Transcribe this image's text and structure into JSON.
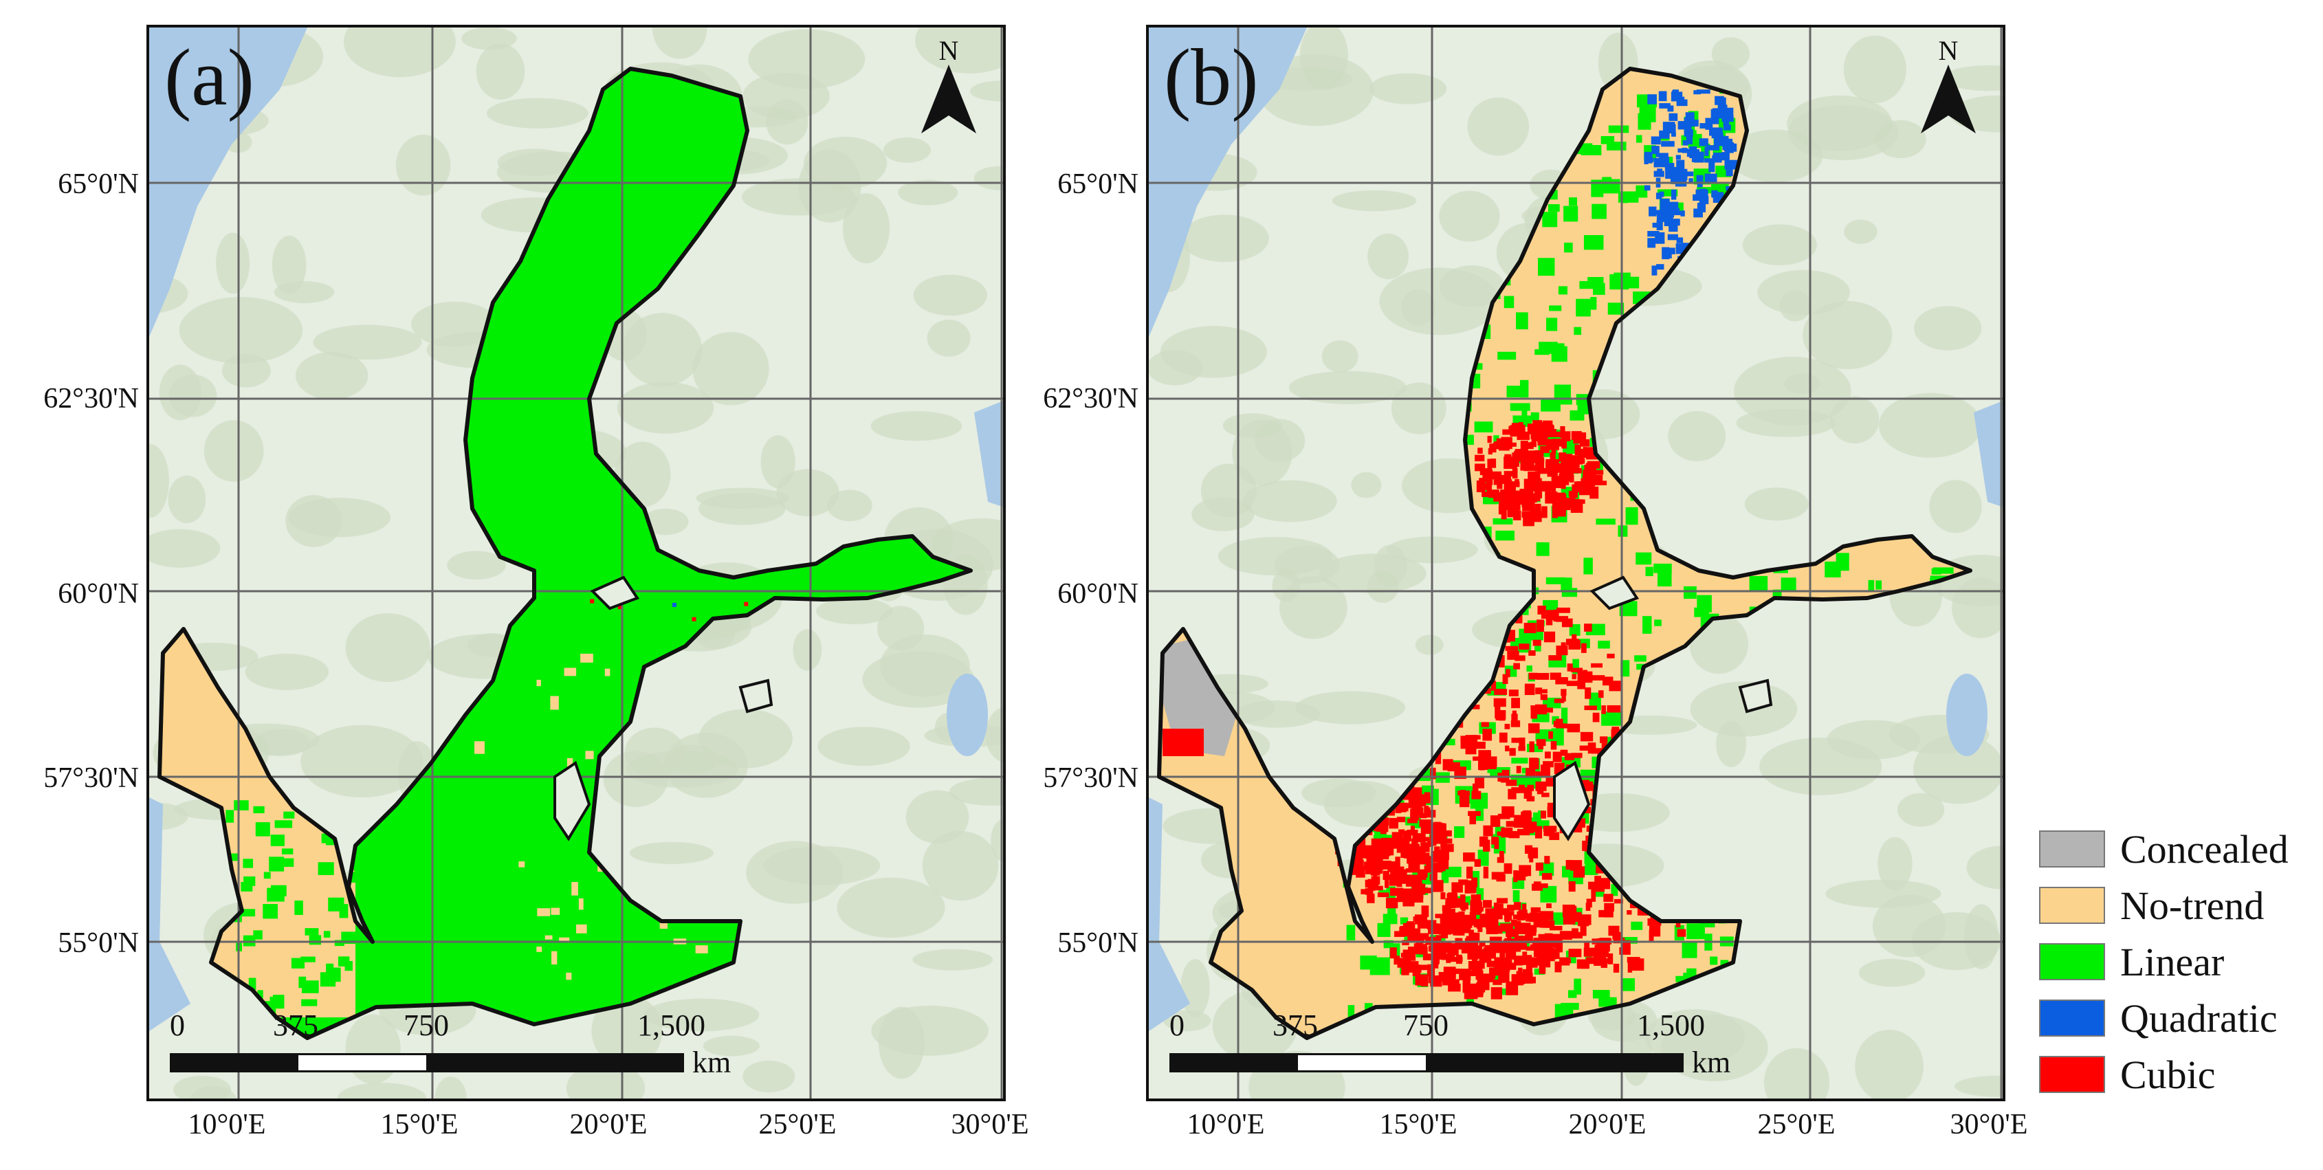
{
  "panels": [
    {
      "id": "a",
      "label": "(a)",
      "north_symbol": "N",
      "dominant_class": "Linear",
      "classes_present": [
        "No-trend",
        "Linear",
        "Quadratic",
        "Cubic"
      ]
    },
    {
      "id": "b",
      "label": "(b)",
      "north_symbol": "N",
      "dominant_class": "No-trend",
      "classes_present": [
        "Concealed",
        "No-trend",
        "Linear",
        "Quadratic",
        "Cubic"
      ]
    }
  ],
  "axes": {
    "latitude_labels": [
      "65°0'N",
      "62°30'N",
      "60°0'N",
      "57°30'N",
      "55°0'N"
    ],
    "longitude_labels": [
      "10°0'E",
      "15°0'E",
      "20°0'E",
      "25°0'E",
      "30°0'E"
    ]
  },
  "scale_bar": {
    "ticks": [
      "0",
      "375",
      "750",
      "1,500"
    ],
    "unit": "km"
  },
  "legend": [
    {
      "label": "Concealed",
      "color": "#b4b4b4"
    },
    {
      "label": "No-trend",
      "color": "#fcd38d"
    },
    {
      "label": "Linear",
      "color": "#00ee00"
    },
    {
      "label": "Quadratic",
      "color": "#0b5ee0"
    },
    {
      "label": "Cubic",
      "color": "#ff0000"
    }
  ],
  "colors": {
    "land": "#e6ede1",
    "forest": "#cfdcc3",
    "water": "#a9c9e6",
    "grid": "#666666"
  }
}
